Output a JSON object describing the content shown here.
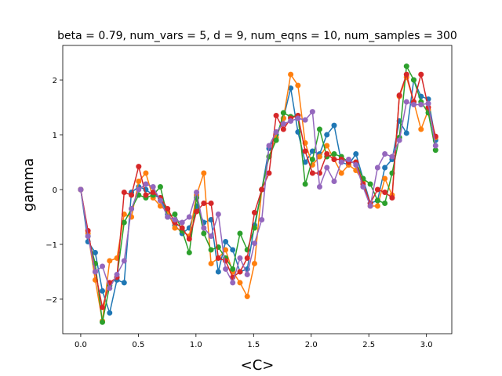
{
  "chart_data": {
    "type": "line",
    "title": "beta = 0.79, num_vars = 5, d = 9, num_eqns = 10, num_samples = 300",
    "xlabel": "<C>",
    "ylabel": "gamma",
    "x": [
      0,
      0.063,
      0.126,
      0.188,
      0.251,
      0.314,
      0.377,
      0.44,
      0.503,
      0.565,
      0.628,
      0.691,
      0.754,
      0.817,
      0.88,
      0.942,
      1.005,
      1.068,
      1.131,
      1.194,
      1.257,
      1.319,
      1.382,
      1.445,
      1.508,
      1.571,
      1.634,
      1.696,
      1.759,
      1.822,
      1.885,
      1.948,
      2.011,
      2.073,
      2.136,
      2.199,
      2.262,
      2.325,
      2.388,
      2.45,
      2.513,
      2.576,
      2.639,
      2.702,
      2.765,
      2.827,
      2.89,
      2.953,
      3.016,
      3.079
    ],
    "series": [
      {
        "color": "#1f77b4",
        "values": [
          0,
          -0.95,
          -1.15,
          -1.85,
          -2.25,
          -1.65,
          -1.7,
          -0.05,
          0.05,
          0.0,
          -0.1,
          -0.15,
          -0.45,
          -0.65,
          -0.8,
          -0.7,
          -0.3,
          -0.6,
          -0.55,
          -1.5,
          -0.95,
          -1.1,
          -1.5,
          -1.45,
          -0.65,
          0.0,
          0.75,
          1.0,
          1.3,
          1.85,
          1.05,
          0.5,
          0.7,
          0.65,
          1.0,
          1.17,
          0.5,
          0.45,
          0.65,
          0.2,
          -0.25,
          -0.2,
          0.4,
          0.55,
          1.25,
          1.03,
          2.0,
          1.7,
          1.65,
          0.9
        ]
      },
      {
        "color": "#ff7f0e",
        "values": [
          0,
          -0.8,
          -1.65,
          -2.4,
          -1.3,
          -1.25,
          -0.45,
          -0.5,
          0.15,
          0.3,
          -0.15,
          -0.3,
          -0.4,
          -0.7,
          -0.75,
          -0.85,
          -0.1,
          0.3,
          -1.35,
          -1.25,
          -1.1,
          -1.5,
          -1.7,
          -1.95,
          -1.35,
          0.0,
          0.6,
          0.95,
          1.3,
          2.1,
          1.9,
          0.85,
          0.45,
          0.6,
          0.8,
          0.55,
          0.3,
          0.45,
          0.35,
          0.15,
          -0.3,
          -0.3,
          0.2,
          -0.1,
          1.7,
          2.05,
          1.6,
          1.1,
          1.45,
          0.95
        ]
      },
      {
        "color": "#2ca02c",
        "values": [
          0,
          -0.85,
          -1.35,
          -2.42,
          -1.75,
          -1.6,
          -0.6,
          -0.35,
          -0.1,
          -0.15,
          -0.1,
          0.05,
          -0.5,
          -0.45,
          -0.75,
          -1.15,
          -0.15,
          -0.8,
          -1.1,
          -1.05,
          -1.25,
          -1.45,
          -0.8,
          -1.1,
          -0.7,
          0.0,
          0.6,
          0.9,
          1.4,
          1.33,
          1.35,
          0.1,
          0.55,
          1.1,
          0.6,
          0.65,
          0.6,
          0.5,
          0.5,
          0.2,
          0.1,
          -0.2,
          -0.25,
          0.3,
          0.95,
          2.25,
          2.0,
          1.6,
          1.4,
          0.72
        ]
      },
      {
        "color": "#d62728",
        "values": [
          0,
          -0.75,
          -1.5,
          -2.15,
          -1.7,
          -1.6,
          -0.05,
          -0.1,
          0.42,
          -0.1,
          -0.05,
          -0.15,
          -0.35,
          -0.6,
          -0.7,
          -0.9,
          -0.4,
          -0.25,
          -0.25,
          -1.25,
          -1.3,
          -1.6,
          -1.5,
          -1.25,
          -0.42,
          0.0,
          0.3,
          1.35,
          1.1,
          1.3,
          1.35,
          0.7,
          0.3,
          0.3,
          0.65,
          0.55,
          0.55,
          0.5,
          0.5,
          0.1,
          -0.25,
          0.0,
          -0.05,
          -0.15,
          1.72,
          2.1,
          1.6,
          2.1,
          1.5,
          0.97
        ]
      },
      {
        "color": "#9467bd",
        "values": [
          0,
          -0.85,
          -1.5,
          -1.4,
          -1.8,
          -1.55,
          -1.3,
          -0.35,
          0.0,
          0.1,
          0.05,
          -0.2,
          -0.5,
          -0.55,
          -0.6,
          -0.5,
          -0.05,
          -0.7,
          -0.85,
          -0.45,
          -1.45,
          -1.7,
          -1.25,
          -1.55,
          -0.98,
          -0.55,
          0.8,
          1.05,
          1.2,
          1.25,
          1.3,
          1.27,
          1.42,
          0.05,
          0.4,
          0.15,
          0.5,
          0.55,
          0.45,
          0.05,
          -0.3,
          0.4,
          0.65,
          0.6,
          0.9,
          1.6,
          1.55,
          1.55,
          1.57,
          0.8
        ]
      }
    ],
    "markers": true,
    "xlim": [
      -0.156,
      3.22
    ],
    "ylim": [
      -2.63,
      2.63
    ],
    "xticks": [
      {
        "value": 0,
        "label": "0.0"
      },
      0.5,
      {
        "value": 1,
        "label": "1.0"
      },
      1.5,
      {
        "value": 2,
        "label": "2.0"
      },
      2.5,
      {
        "value": 3,
        "label": "3.0"
      }
    ],
    "yticks": [
      {
        "value": -2,
        "label": "−2"
      },
      {
        "value": -1,
        "label": "−1"
      },
      0,
      1,
      2
    ],
    "grid": false
  }
}
